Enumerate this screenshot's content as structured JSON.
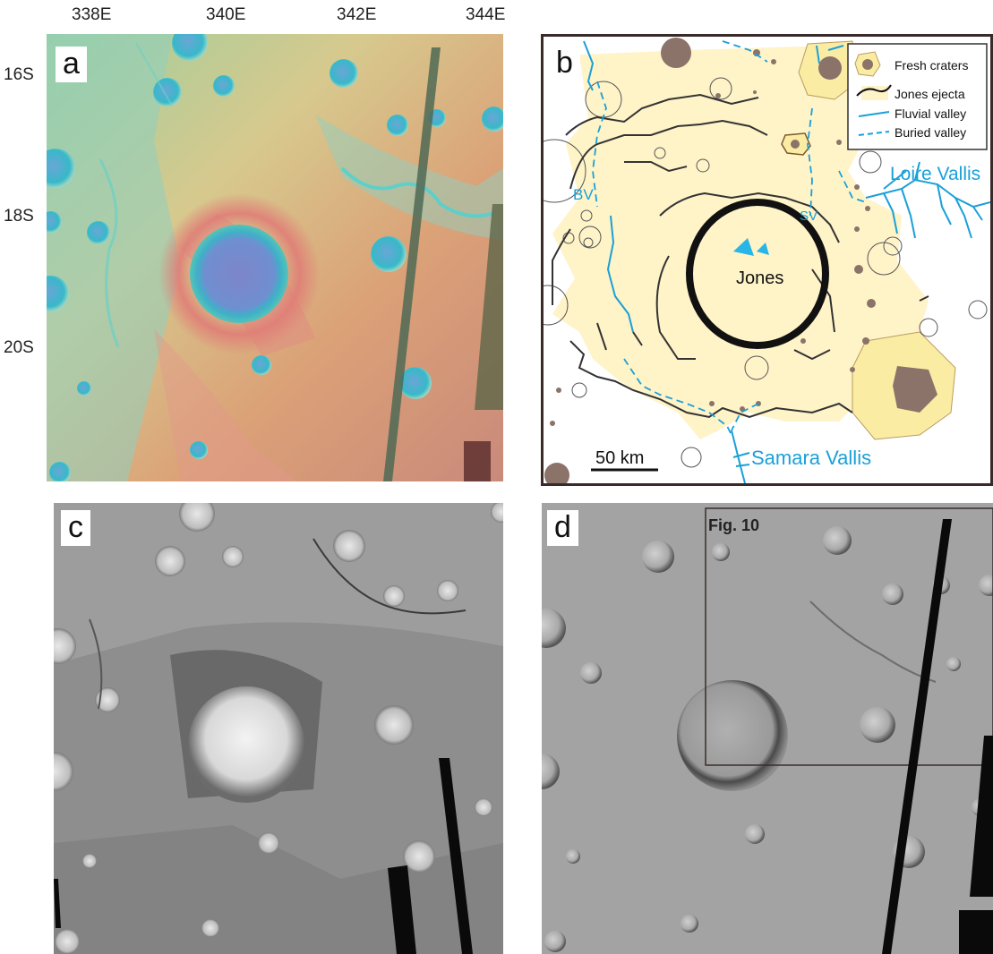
{
  "axes": {
    "lon_ticks": [
      "338E",
      "340E",
      "342E",
      "344E"
    ],
    "lat_ticks": [
      "16S",
      "18S",
      "20S"
    ]
  },
  "panels": {
    "a": {
      "letter": "a"
    },
    "b": {
      "letter": "b",
      "crater_name": "Jones",
      "valley_labels": {
        "bv": "BV",
        "sv": "SV",
        "loire": "Loire Vallis",
        "samara": "Samara Vallis"
      },
      "scale_label": "50 km",
      "legend": {
        "fresh": "Fresh craters",
        "ejecta": "Jones ejecta",
        "fluvial": "Fluvial valley",
        "buried": "Buried valley"
      }
    },
    "c": {
      "letter": "c"
    },
    "d": {
      "letter": "d",
      "box_label": "Fig. 10"
    }
  },
  "colors": {
    "ejecta_fill": "#fff3c8",
    "fresh_fill": "#fbeca4",
    "crater_brown": "#8b7369",
    "valley_blue": "#1aa0d8",
    "label_blue": "#1aa0d8"
  }
}
